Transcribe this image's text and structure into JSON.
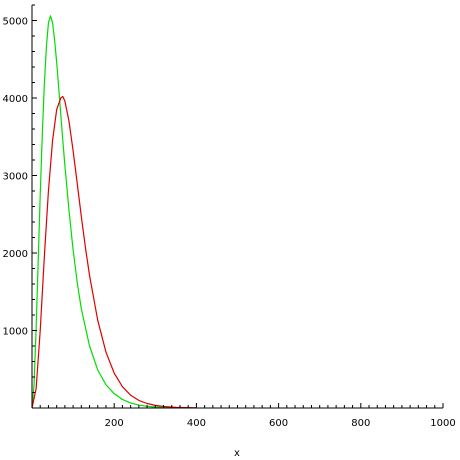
{
  "chart_data": {
    "type": "line",
    "title": "",
    "xlabel": "x",
    "ylabel": "",
    "xlim": [
      0,
      1000
    ],
    "ylim": [
      0,
      5200
    ],
    "x_ticks": [
      200,
      400,
      600,
      800,
      1000
    ],
    "x_tick_labels": [
      "200",
      "400",
      "600",
      "800",
      "1000"
    ],
    "y_ticks": [
      1000,
      2000,
      3000,
      4000,
      5000
    ],
    "y_tick_labels": [
      "1000",
      "2000",
      "3000",
      "4000",
      "5000"
    ],
    "grid": false,
    "legend": "none",
    "series": [
      {
        "color": "#00dd00",
        "x": [
          0,
          5,
          10,
          15,
          20,
          25,
          30,
          35,
          40,
          45,
          50,
          55,
          60,
          65,
          70,
          75,
          80,
          90,
          100,
          110,
          120,
          140,
          160,
          180,
          200,
          220,
          240,
          260,
          280,
          300,
          320,
          350,
          400
        ],
        "y": [
          0,
          300,
          1020,
          1880,
          2750,
          3520,
          4170,
          4660,
          4970,
          5060,
          4970,
          4750,
          4460,
          4130,
          3790,
          3450,
          3130,
          2550,
          2040,
          1620,
          1280,
          800,
          490,
          300,
          185,
          110,
          65,
          38,
          22,
          13,
          8,
          4,
          1
        ]
      },
      {
        "color": "#dd0000",
        "x": [
          0,
          10,
          20,
          30,
          40,
          50,
          60,
          70,
          75,
          80,
          90,
          100,
          110,
          120,
          130,
          140,
          160,
          180,
          200,
          220,
          240,
          260,
          280,
          300,
          320,
          350,
          400
        ],
        "y": [
          0,
          250,
          1000,
          1950,
          2800,
          3450,
          3850,
          4000,
          4020,
          3960,
          3700,
          3320,
          2900,
          2470,
          2070,
          1710,
          1130,
          720,
          450,
          275,
          165,
          98,
          58,
          34,
          20,
          9,
          2
        ]
      }
    ]
  }
}
